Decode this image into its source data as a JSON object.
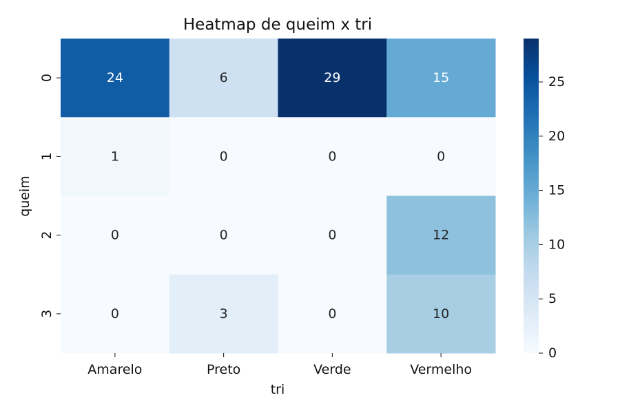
{
  "chart_data": {
    "type": "heatmap",
    "title": "Heatmap de queim x tri",
    "xlabel": "tri",
    "ylabel": "queim",
    "x_categories": [
      "Amarelo",
      "Preto",
      "Verde",
      "Vermelho"
    ],
    "y_categories": [
      "0",
      "1",
      "2",
      "3"
    ],
    "values": [
      [
        24,
        6,
        29,
        15
      ],
      [
        1,
        0,
        0,
        0
      ],
      [
        0,
        0,
        0,
        12
      ],
      [
        0,
        3,
        0,
        10
      ]
    ],
    "annotations": true,
    "colormap": "Blues",
    "color_range": [
      0,
      29
    ],
    "colorbar": {
      "ticks": [
        0,
        5,
        10,
        15,
        20,
        25
      ]
    }
  }
}
